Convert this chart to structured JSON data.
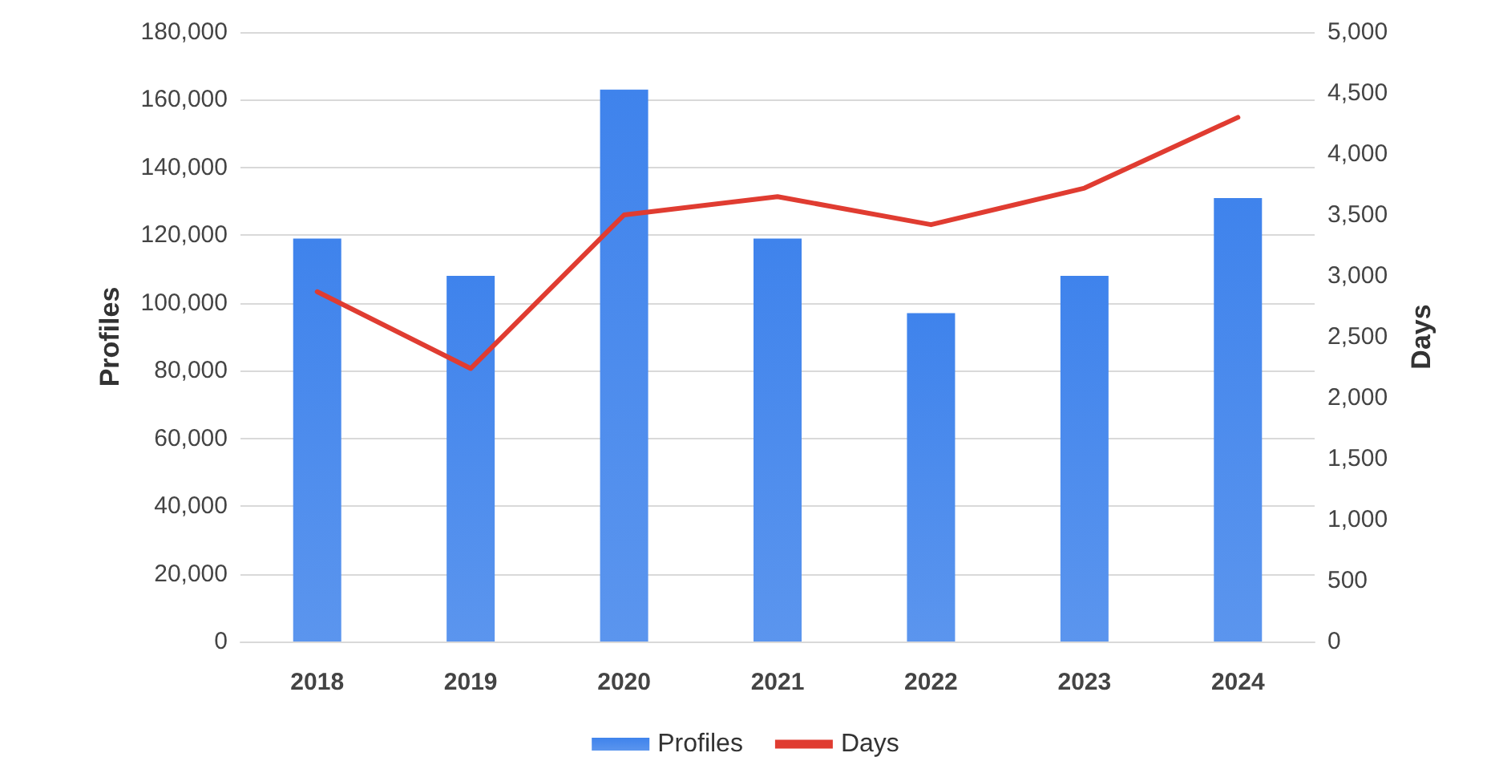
{
  "chart_data": {
    "type": "bar",
    "categories": [
      "2018",
      "2019",
      "2020",
      "2021",
      "2022",
      "2023",
      "2024"
    ],
    "ylabel": "Profiles",
    "y2label": "Days",
    "series": [
      {
        "name": "Profiles",
        "color": "#3f83ec",
        "values": [
          119000,
          108000,
          163000,
          119000,
          97000,
          108000,
          131000
        ]
      },
      {
        "name": "Days",
        "type": "line",
        "axis": "y2",
        "color": "#e03c31",
        "values": [
          2870,
          2240,
          3500,
          3650,
          3420,
          3720,
          4300
        ]
      }
    ],
    "ylim": [
      0,
      180000
    ],
    "yticks": [
      0,
      {
        "value": 20000,
        "label": "20,000"
      },
      {
        "value": 40000,
        "label": "40,000"
      },
      {
        "value": 60000,
        "label": "60,000"
      },
      {
        "value": 80000,
        "label": "80,000"
      },
      {
        "value": 100000,
        "label": "100,000"
      },
      {
        "value": 120000,
        "label": "120,000"
      },
      {
        "value": 140000,
        "label": "140,000"
      },
      {
        "value": 160000,
        "label": "160,000"
      },
      {
        "value": 180000,
        "label": "180,000"
      }
    ],
    "y2lim": [
      0,
      5000
    ],
    "y2ticks": [
      0,
      500,
      {
        "value": 1000,
        "label": "1,000"
      },
      {
        "value": 1500,
        "label": "1,500"
      },
      {
        "value": 2000,
        "label": "2,000"
      },
      {
        "value": 2500,
        "label": "2,500"
      },
      {
        "value": 3000,
        "label": "3,000"
      },
      {
        "value": 3500,
        "label": "3,500"
      },
      {
        "value": 4000,
        "label": "4,000"
      },
      {
        "value": 4500,
        "label": "4,500"
      },
      {
        "value": 5000,
        "label": "5,000"
      }
    ],
    "grid": "y",
    "legend": "bottom",
    "marker": "none",
    "line_style": "solid"
  }
}
